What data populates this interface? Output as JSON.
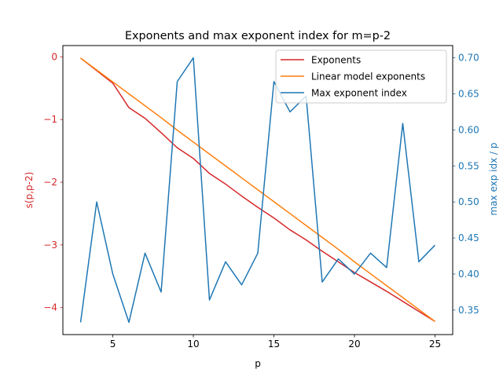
{
  "chart_data": {
    "type": "line",
    "title": "Exponents and max exponent index for m=p-2",
    "xlabel": "p",
    "ylabel_left": "s(p,p-2)",
    "ylabel_right": "max exp idx / p",
    "xlim": [
      1.9,
      26.1
    ],
    "ylim_left": [
      -4.43,
      0.18
    ],
    "ylim_right": [
      0.316,
      0.717
    ],
    "x_ticks": [
      5,
      10,
      15,
      20,
      25
    ],
    "y_left_ticks": [
      0,
      -1,
      -2,
      -3,
      -4
    ],
    "y_right_ticks": [
      0.35,
      0.4,
      0.45,
      0.5,
      0.55,
      0.6,
      0.65,
      0.7
    ],
    "legend_position": "top-right",
    "colors": {
      "left_axis": "#d62728",
      "right_axis": "#1f77b4"
    },
    "x": [
      3,
      4,
      5,
      6,
      7,
      8,
      9,
      10,
      11,
      12,
      13,
      14,
      15,
      16,
      17,
      18,
      19,
      20,
      21,
      22,
      23,
      24,
      25
    ],
    "series": [
      {
        "name": "Exponents",
        "axis": "left",
        "color": "#d62728",
        "values": [
          -0.02,
          -0.22,
          -0.42,
          -0.81,
          -0.98,
          -1.21,
          -1.45,
          -1.62,
          -1.86,
          -2.03,
          -2.22,
          -2.4,
          -2.57,
          -2.76,
          -2.92,
          -3.1,
          -3.27,
          -3.44,
          -3.59,
          -3.74,
          -3.9,
          -4.06,
          -4.22
        ]
      },
      {
        "name": "Linear model exponents",
        "axis": "left",
        "color": "#ff7f0e",
        "values": [
          -0.02,
          -0.21,
          -0.4,
          -0.59,
          -0.78,
          -0.97,
          -1.17,
          -1.36,
          -1.55,
          -1.74,
          -1.93,
          -2.12,
          -2.31,
          -2.5,
          -2.69,
          -2.88,
          -3.07,
          -3.27,
          -3.46,
          -3.65,
          -3.84,
          -4.03,
          -4.22
        ]
      },
      {
        "name": "Max exponent index",
        "axis": "right",
        "color": "#1f77b4",
        "values": [
          0.333,
          0.5,
          0.4,
          0.333,
          0.429,
          0.375,
          0.667,
          0.7,
          0.364,
          0.417,
          0.385,
          0.429,
          0.667,
          0.625,
          0.647,
          0.389,
          0.421,
          0.4,
          0.429,
          0.409,
          0.609,
          0.417,
          0.44
        ]
      }
    ]
  }
}
